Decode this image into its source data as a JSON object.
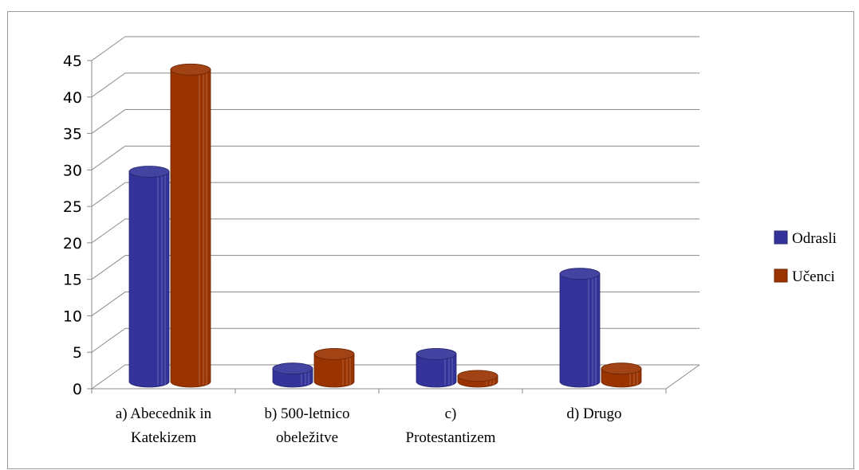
{
  "chart_data": {
    "type": "bar",
    "title": "",
    "xlabel": "",
    "ylabel": "",
    "categories": [
      [
        "a) Abecednik in",
        "Katekizem"
      ],
      [
        "b) 500-letnico",
        "obeležitve"
      ],
      [
        "c)",
        "Protestantizem"
      ],
      [
        "d) Drugo"
      ]
    ],
    "series": [
      {
        "name": "Odrasli",
        "values": [
          29,
          2,
          4,
          15
        ],
        "color": "#333399"
      },
      {
        "name": "Učenci",
        "values": [
          43,
          4,
          1,
          2
        ],
        "color": "#993300"
      }
    ],
    "ylim": [
      0,
      45
    ],
    "yticks": [
      0,
      5,
      10,
      15,
      20,
      25,
      30,
      35,
      40,
      45
    ],
    "grid": true,
    "legend_position": "right",
    "style": "3d-cylinder"
  }
}
